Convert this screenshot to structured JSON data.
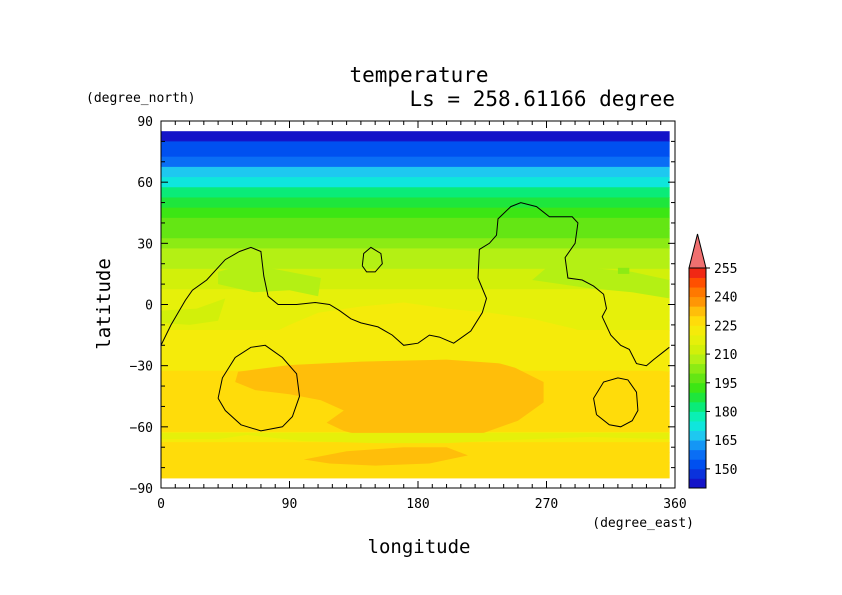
{
  "chart_data": {
    "type": "heatmap",
    "title": "temperature",
    "subtitle": "Ls = 258.61166 degree",
    "xlabel": "longitude",
    "ylabel": "latitude",
    "x_units": "(degree_east)",
    "y_units": "(degree_north)",
    "xlim": [
      0,
      360
    ],
    "ylim": [
      -90,
      90
    ],
    "data_extent": {
      "lon": [
        0,
        356.25
      ],
      "lat": [
        -85,
        85
      ]
    },
    "x_ticks": [
      0,
      90,
      180,
      270,
      360
    ],
    "y_ticks": [
      90,
      60,
      30,
      0,
      -30,
      -60,
      -90
    ],
    "x_tick_labels": [
      "0",
      "90",
      "180",
      "270",
      "360"
    ],
    "y_tick_labels": [
      "90",
      "60",
      "30",
      "0",
      "−30",
      "−60",
      "−90"
    ],
    "colorbar": {
      "levels": [
        140,
        145,
        150,
        155,
        160,
        165,
        170,
        175,
        180,
        185,
        190,
        195,
        200,
        205,
        210,
        215,
        220,
        225,
        230,
        235,
        240,
        245,
        250,
        255,
        260
      ],
      "colors": [
        "#1414c8",
        "#0a32dc",
        "#0050f0",
        "#0a6ef5",
        "#1496f5",
        "#1ec8f0",
        "#0fe6dc",
        "#0af0b4",
        "#0aeb78",
        "#1ee63c",
        "#3ce614",
        "#64e614",
        "#8ceb14",
        "#b4f014",
        "#d2f00a",
        "#e6f00a",
        "#f5eb0a",
        "#ffdc0a",
        "#ffbe0a",
        "#ff9605",
        "#ff7800",
        "#ff5000",
        "#f02814",
        "#e61e1e"
      ],
      "tick_labels": [
        "150",
        "165",
        "180",
        "195",
        "210",
        "225",
        "240",
        "255"
      ],
      "tick_values": [
        150,
        165,
        180,
        195,
        210,
        225,
        240,
        255
      ],
      "extend": "max"
    },
    "zonal_profile": [
      {
        "lat": 85,
        "value": 142
      },
      {
        "lat": 75,
        "value": 150
      },
      {
        "lat": 70,
        "value": 157
      },
      {
        "lat": 65,
        "value": 165
      },
      {
        "lat": 60,
        "value": 174
      },
      {
        "lat": 55,
        "value": 180
      },
      {
        "lat": 50,
        "value": 186
      },
      {
        "lat": 45,
        "value": 191
      },
      {
        "lat": 40,
        "value": 195
      },
      {
        "lat": 35,
        "value": 199
      },
      {
        "lat": 30,
        "value": 203
      },
      {
        "lat": 25,
        "value": 206
      },
      {
        "lat": 20,
        "value": 209
      },
      {
        "lat": 15,
        "value": 211
      },
      {
        "lat": 10,
        "value": 213
      },
      {
        "lat": 5,
        "value": 215
      },
      {
        "lat": 0,
        "value": 216
      },
      {
        "lat": -5,
        "value": 218
      },
      {
        "lat": -10,
        "value": 219
      },
      {
        "lat": -15,
        "value": 220
      },
      {
        "lat": -20,
        "value": 221
      },
      {
        "lat": -25,
        "value": 222
      },
      {
        "lat": -30,
        "value": 223
      },
      {
        "lat": -35,
        "value": 226
      },
      {
        "lat": -40,
        "value": 227
      },
      {
        "lat": -45,
        "value": 228
      },
      {
        "lat": -50,
        "value": 228
      },
      {
        "lat": -55,
        "value": 228
      },
      {
        "lat": -60,
        "value": 226
      },
      {
        "lat": -65,
        "value": 224
      },
      {
        "lat": -70,
        "value": 227
      },
      {
        "lat": -75,
        "value": 228
      },
      {
        "lat": -80,
        "value": 228
      },
      {
        "lat": -85,
        "value": 227
      }
    ],
    "patches": [
      {
        "name": "southern-warm-core-1",
        "value": 233,
        "points": [
          [
            54,
            -33
          ],
          [
            86,
            -30
          ],
          [
            112,
            -28
          ],
          [
            145,
            -24
          ],
          [
            170,
            -22
          ],
          [
            196,
            -23
          ],
          [
            222,
            -26
          ],
          [
            248,
            -31
          ],
          [
            268,
            -38
          ],
          [
            268,
            -48
          ],
          [
            250,
            -57
          ],
          [
            226,
            -63
          ],
          [
            200,
            -64
          ],
          [
            172,
            -66
          ],
          [
            150,
            -66
          ],
          [
            128,
            -62
          ],
          [
            116,
            -58
          ],
          [
            128,
            -52
          ],
          [
            112,
            -47
          ],
          [
            90,
            -44
          ],
          [
            66,
            -42
          ],
          [
            52,
            -38
          ]
        ]
      },
      {
        "name": "southern-warm-core-2",
        "value": 233,
        "points": [
          [
            100,
            -76
          ],
          [
            130,
            -72
          ],
          [
            170,
            -70
          ],
          [
            200,
            -70
          ],
          [
            215,
            -74
          ],
          [
            188,
            -78
          ],
          [
            150,
            -79
          ],
          [
            118,
            -78
          ]
        ]
      },
      {
        "name": "equatorial-warm-band",
        "value": 223,
        "points": [
          [
            40,
            -25
          ],
          [
            72,
            -16
          ],
          [
            90,
            -10
          ],
          [
            110,
            -4
          ],
          [
            140,
            -1
          ],
          [
            170,
            1
          ],
          [
            200,
            -2
          ],
          [
            230,
            -4
          ],
          [
            260,
            -7
          ],
          [
            290,
            -12
          ],
          [
            318,
            -20
          ],
          [
            340,
            -26
          ],
          [
            356,
            -28
          ],
          [
            356,
            -33
          ],
          [
            330,
            -31
          ],
          [
            300,
            -32
          ],
          [
            260,
            -30
          ],
          [
            200,
            -27
          ],
          [
            140,
            -28
          ],
          [
            80,
            -30
          ],
          [
            40,
            -30
          ]
        ]
      },
      {
        "name": "far-south-cool-strip",
        "value": 218,
        "points": [
          [
            0,
            -66
          ],
          [
            40,
            -66
          ],
          [
            60,
            -64
          ],
          [
            100,
            -67
          ],
          [
            150,
            -68
          ],
          [
            200,
            -68
          ],
          [
            260,
            -66
          ],
          [
            300,
            -65
          ],
          [
            356,
            -66
          ],
          [
            356,
            -63
          ],
          [
            0,
            -63
          ]
        ]
      },
      {
        "name": "northern-green-lobe",
        "value": 208,
        "points": [
          [
            40,
            10
          ],
          [
            65,
            6
          ],
          [
            90,
            7
          ],
          [
            110,
            4
          ],
          [
            112,
            13
          ],
          [
            90,
            16
          ],
          [
            60,
            20
          ],
          [
            40,
            16
          ]
        ]
      },
      {
        "name": "northern-green-lobe-2",
        "value": 205,
        "points": [
          [
            260,
            12
          ],
          [
            300,
            8
          ],
          [
            330,
            6
          ],
          [
            356,
            3
          ],
          [
            356,
            12
          ],
          [
            330,
            16
          ],
          [
            300,
            18
          ],
          [
            270,
            18
          ]
        ]
      },
      {
        "name": "small-cold-spot",
        "value": 201,
        "points": [
          [
            320,
            15
          ],
          [
            328,
            15
          ],
          [
            328,
            18
          ],
          [
            320,
            18
          ]
        ]
      },
      {
        "name": "western-yellow-patch",
        "value": 212,
        "points": [
          [
            0,
            -3
          ],
          [
            25,
            -2
          ],
          [
            45,
            3
          ],
          [
            40,
            -8
          ],
          [
            20,
            -10
          ],
          [
            0,
            -9
          ]
        ]
      }
    ],
    "contours": [
      {
        "name": "topography-contour-north",
        "points": [
          [
            0,
            -20
          ],
          [
            7,
            -10
          ],
          [
            17,
            2
          ],
          [
            22,
            7
          ],
          [
            32,
            12
          ],
          [
            45,
            22
          ],
          [
            55,
            26
          ],
          [
            63,
            28
          ],
          [
            70,
            26
          ],
          [
            72,
            14
          ],
          [
            75,
            4
          ],
          [
            82,
            0
          ],
          [
            95,
            0
          ],
          [
            108,
            1
          ],
          [
            118,
            0
          ],
          [
            125,
            -3
          ],
          [
            133,
            -7
          ],
          [
            140,
            -9
          ],
          [
            152,
            -11
          ],
          [
            162,
            -15
          ],
          [
            170,
            -20
          ],
          [
            180,
            -19
          ],
          [
            188,
            -15
          ],
          [
            195,
            -16
          ],
          [
            205,
            -19
          ],
          [
            217,
            -13
          ],
          [
            225,
            -4
          ],
          [
            228,
            3
          ],
          [
            222,
            13
          ],
          [
            223,
            27
          ],
          [
            230,
            30
          ],
          [
            235,
            34
          ],
          [
            236,
            42
          ],
          [
            245,
            48
          ],
          [
            252,
            50
          ],
          [
            263,
            48
          ],
          [
            272,
            43
          ],
          [
            288,
            43
          ],
          [
            292,
            40
          ],
          [
            290,
            30
          ],
          [
            283,
            23
          ],
          [
            285,
            13
          ],
          [
            295,
            12
          ],
          [
            303,
            9
          ],
          [
            310,
            5
          ],
          [
            312,
            -2
          ],
          [
            309,
            -6
          ],
          [
            315,
            -15
          ],
          [
            322,
            -20
          ],
          [
            328,
            -22
          ],
          [
            333,
            -29
          ],
          [
            340,
            -30
          ],
          [
            345,
            -27
          ],
          [
            356,
            -21
          ]
        ]
      },
      {
        "name": "small-island-contour",
        "points": [
          [
            141,
            19
          ],
          [
            142,
            25
          ],
          [
            147,
            28
          ],
          [
            154,
            25
          ],
          [
            155,
            20
          ],
          [
            150,
            16
          ],
          [
            144,
            16
          ],
          [
            141,
            19
          ]
        ]
      },
      {
        "name": "southern-crater-contour-1",
        "points": [
          [
            40,
            -46
          ],
          [
            43,
            -36
          ],
          [
            52,
            -26
          ],
          [
            63,
            -21
          ],
          [
            73,
            -20
          ],
          [
            85,
            -26
          ],
          [
            95,
            -34
          ],
          [
            97,
            -45
          ],
          [
            92,
            -55
          ],
          [
            85,
            -60
          ],
          [
            70,
            -62
          ],
          [
            56,
            -59
          ],
          [
            45,
            -52
          ],
          [
            40,
            -46
          ]
        ]
      },
      {
        "name": "southern-crater-contour-2",
        "points": [
          [
            305,
            -54
          ],
          [
            303,
            -46
          ],
          [
            310,
            -38
          ],
          [
            320,
            -36
          ],
          [
            327,
            -37
          ],
          [
            333,
            -43
          ],
          [
            334,
            -52
          ],
          [
            330,
            -57
          ],
          [
            322,
            -60
          ],
          [
            314,
            -59
          ],
          [
            305,
            -54
          ]
        ]
      }
    ]
  }
}
